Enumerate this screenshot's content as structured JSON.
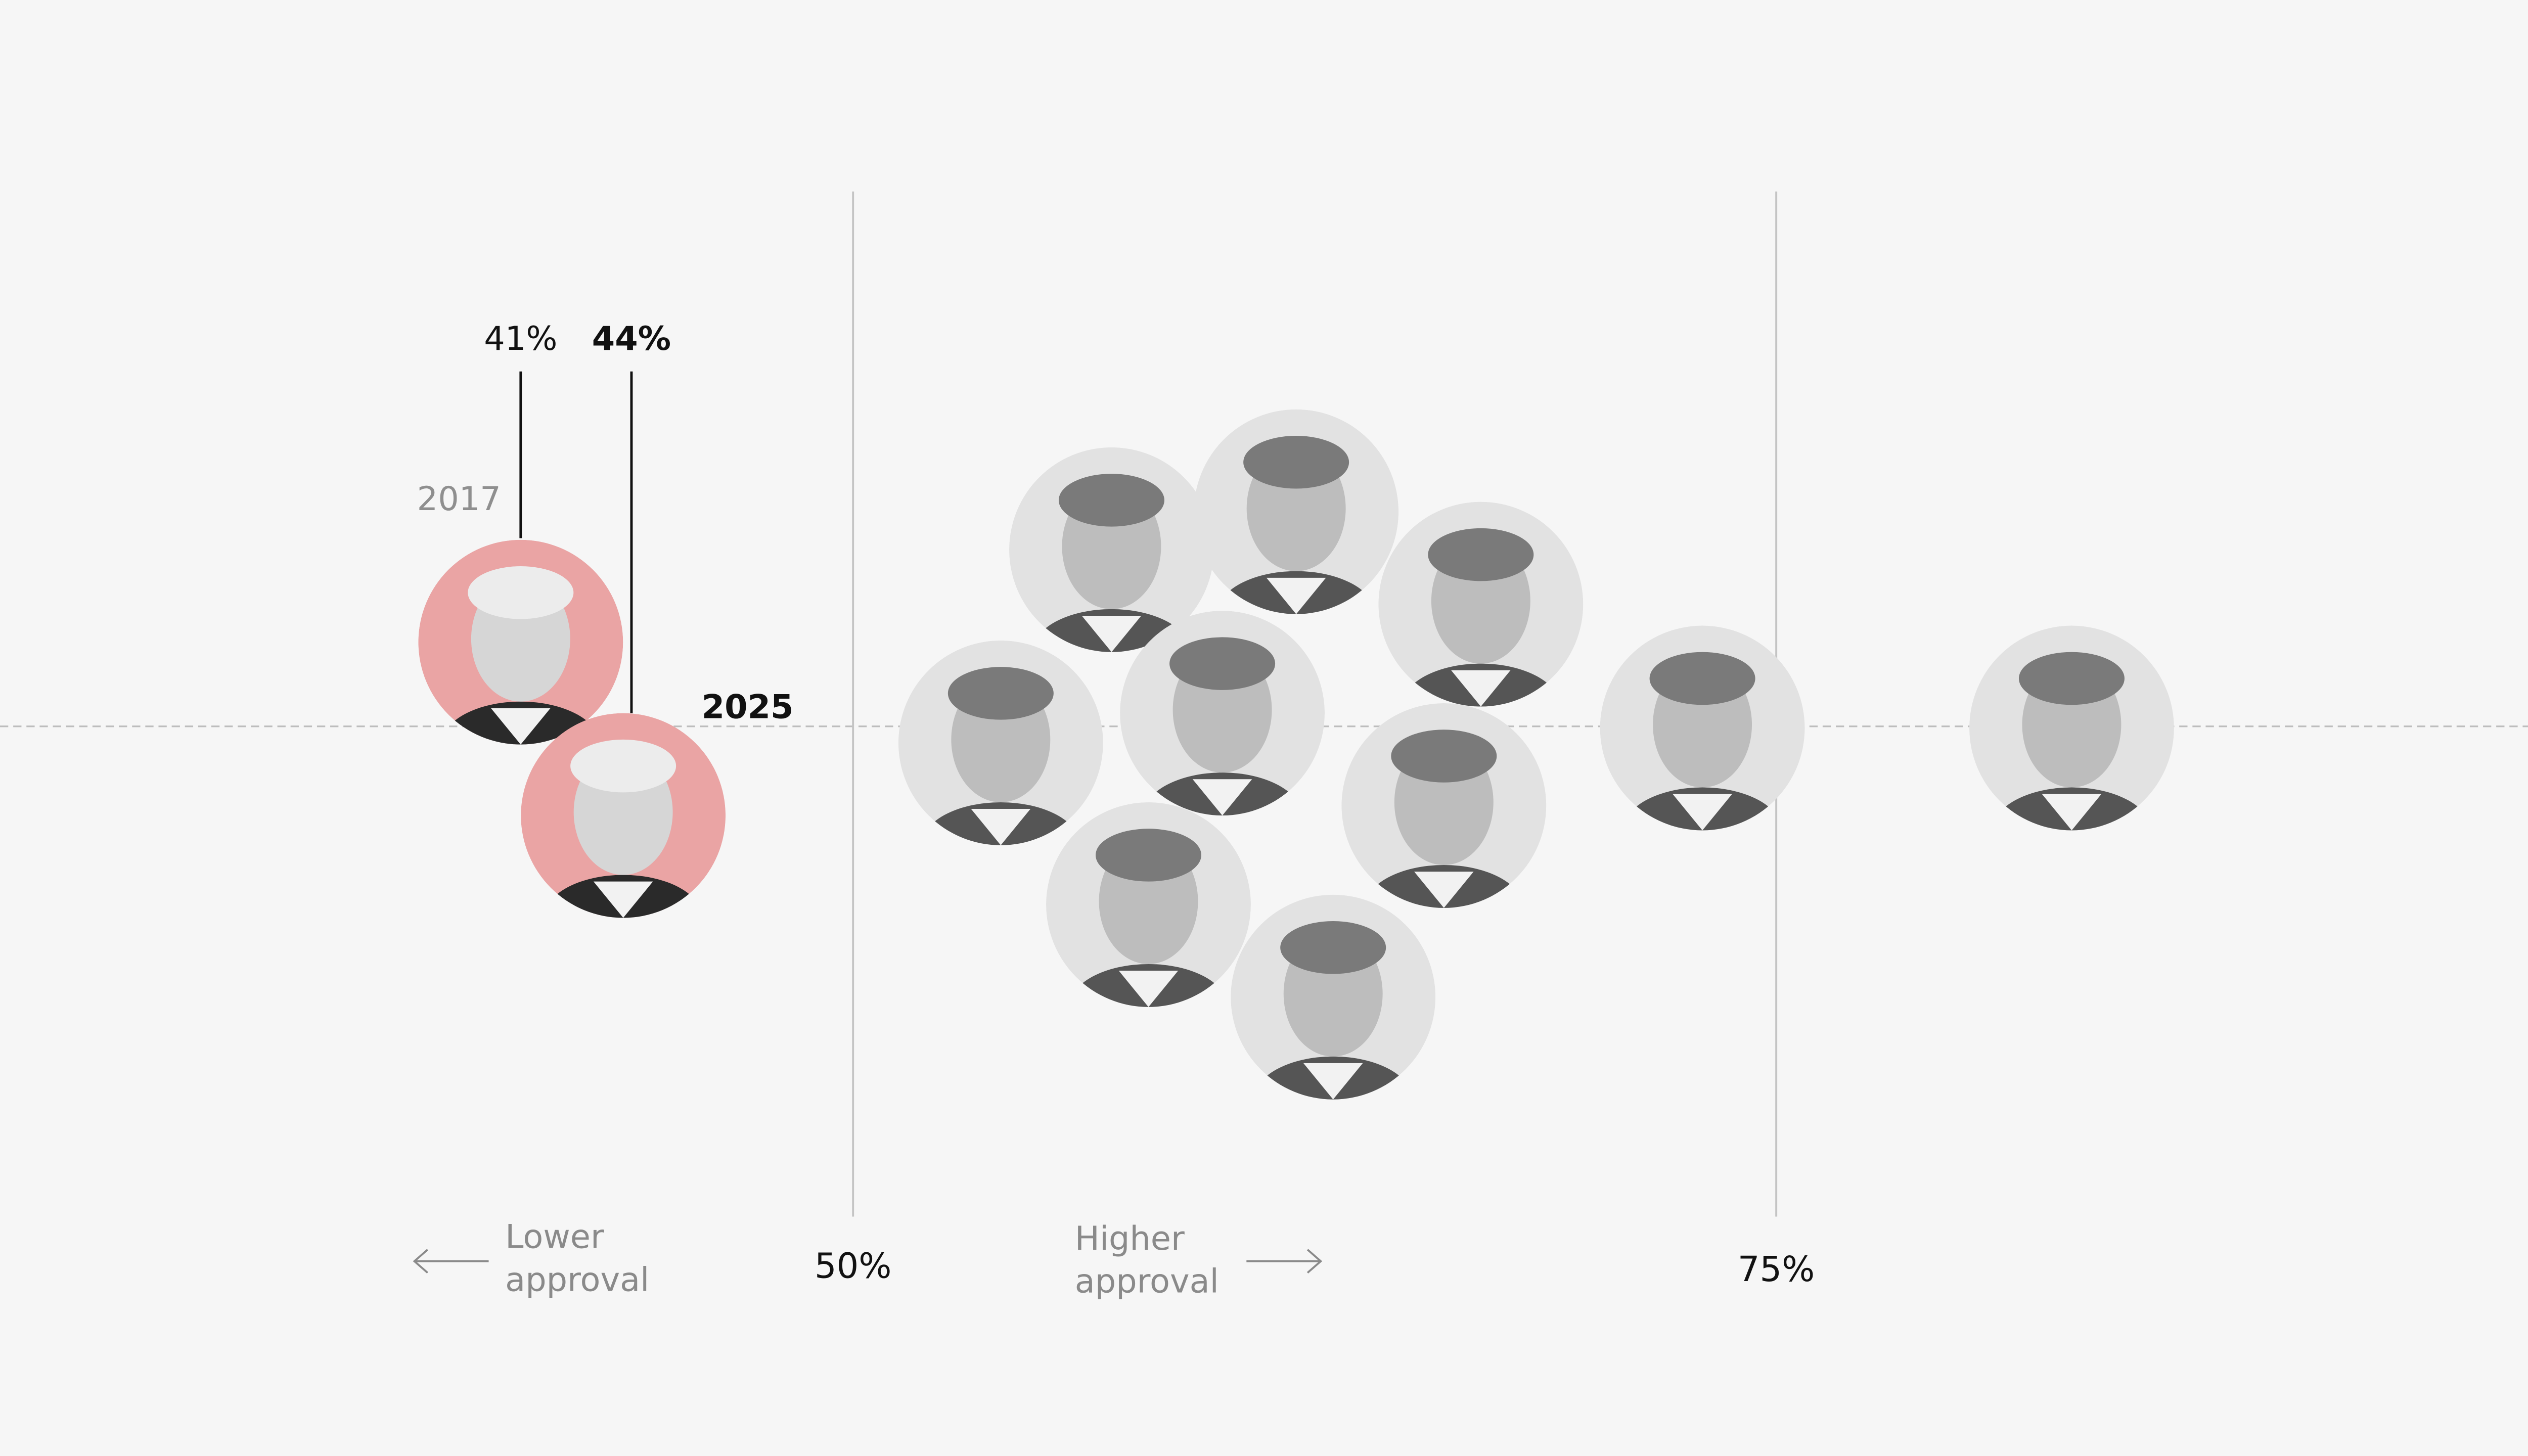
{
  "chart_data": {
    "type": "beeswarm",
    "xlim": [
      26.9,
      97
    ],
    "xticks": [
      {
        "value": 50,
        "label": "50%"
      },
      {
        "value": 75,
        "label": "75%"
      }
    ],
    "lower_label": "Lower approval",
    "higher_label": "Higher approval",
    "highlight": {
      "values": [
        41,
        44
      ],
      "value_labels": [
        "41%",
        "44%"
      ],
      "years": [
        "2017",
        "2025"
      ],
      "color": "#eaa4a4"
    },
    "others": {
      "values": [
        57,
        62,
        67,
        54,
        60,
        66,
        58,
        63,
        73,
        83
      ],
      "color": "#e2e2e2"
    }
  }
}
